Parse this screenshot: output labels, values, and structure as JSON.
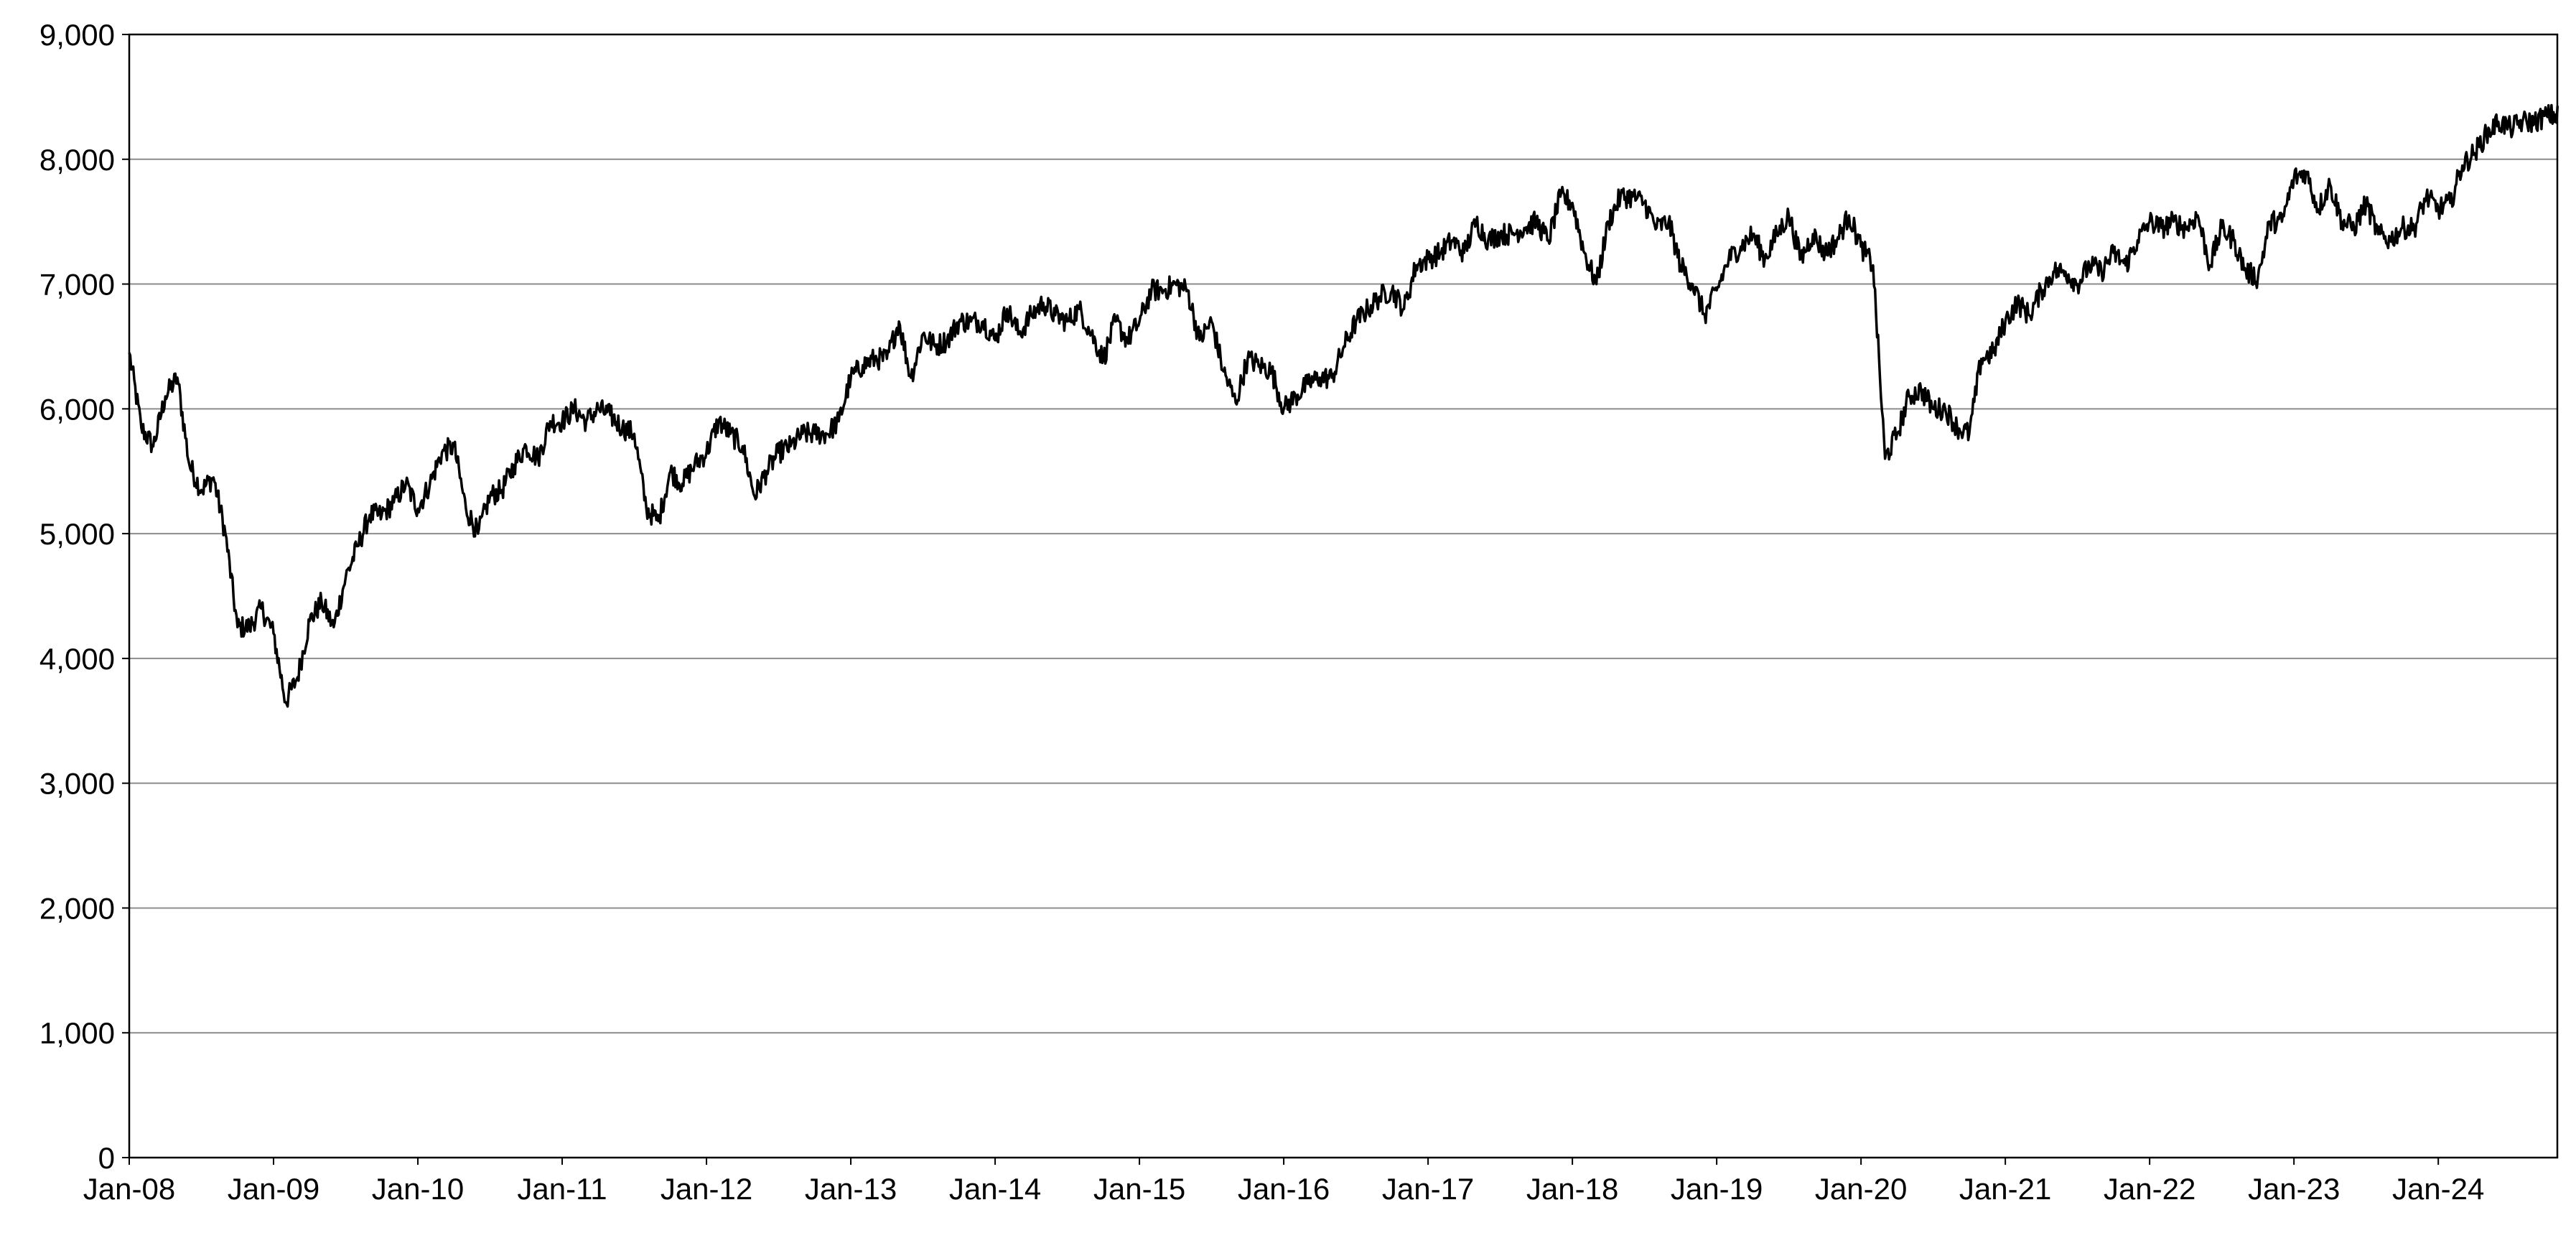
{
  "chart_data": {
    "type": "line",
    "title": "",
    "xlabel": "",
    "ylabel": "",
    "x_range": [
      "2008-01",
      "2024-10"
    ],
    "ylim": [
      0,
      9000
    ],
    "y_ticks": [
      0,
      1000,
      2000,
      3000,
      4000,
      5000,
      6000,
      7000,
      8000,
      9000
    ],
    "y_tick_labels": [
      "0",
      "1,000",
      "2,000",
      "3,000",
      "4,000",
      "5,000",
      "6,000",
      "7,000",
      "8,000",
      "9,000"
    ],
    "x_ticks": [
      "2008-01",
      "2009-01",
      "2010-01",
      "2011-01",
      "2012-01",
      "2013-01",
      "2014-01",
      "2015-01",
      "2016-01",
      "2017-01",
      "2018-01",
      "2019-01",
      "2020-01",
      "2021-01",
      "2022-01",
      "2023-01",
      "2024-01"
    ],
    "x_tick_labels": [
      "Jan-08",
      "Jan-09",
      "Jan-10",
      "Jan-11",
      "Jan-12",
      "Jan-13",
      "Jan-14",
      "Jan-15",
      "Jan-16",
      "Jan-17",
      "Jan-18",
      "Jan-19",
      "Jan-20",
      "Jan-21",
      "Jan-22",
      "Jan-23",
      "Jan-24"
    ],
    "grid": {
      "horizontal": true,
      "vertical": false
    },
    "legend": "none",
    "line_color": "#000000",
    "grid_color": "#8c8c8c",
    "series": [
      {
        "x": [
          "2008-01",
          "2008-02",
          "2008-03",
          "2008-04",
          "2008-05",
          "2008-06",
          "2008-07",
          "2008-08",
          "2008-09",
          "2008-10",
          "2008-11",
          "2008-12",
          "2009-01",
          "2009-02",
          "2009-03",
          "2009-04",
          "2009-05",
          "2009-06",
          "2009-07",
          "2009-08",
          "2009-09",
          "2009-10",
          "2009-11",
          "2009-12",
          "2010-01",
          "2010-02",
          "2010-03",
          "2010-04",
          "2010-05",
          "2010-06",
          "2010-07",
          "2010-08",
          "2010-09",
          "2010-10",
          "2010-11",
          "2010-12",
          "2011-01",
          "2011-02",
          "2011-03",
          "2011-04",
          "2011-05",
          "2011-06",
          "2011-07",
          "2011-08",
          "2011-09",
          "2011-10",
          "2011-11",
          "2011-12",
          "2012-01",
          "2012-02",
          "2012-03",
          "2012-04",
          "2012-05",
          "2012-06",
          "2012-07",
          "2012-08",
          "2012-09",
          "2012-10",
          "2012-11",
          "2012-12",
          "2013-01",
          "2013-02",
          "2013-03",
          "2013-04",
          "2013-05",
          "2013-06",
          "2013-07",
          "2013-08",
          "2013-09",
          "2013-10",
          "2013-11",
          "2013-12",
          "2014-01",
          "2014-02",
          "2014-03",
          "2014-04",
          "2014-05",
          "2014-06",
          "2014-07",
          "2014-08",
          "2014-09",
          "2014-10",
          "2014-11",
          "2014-12",
          "2015-01",
          "2015-02",
          "2015-03",
          "2015-04",
          "2015-05",
          "2015-06",
          "2015-07",
          "2015-08",
          "2015-09",
          "2015-10",
          "2015-11",
          "2015-12",
          "2016-01",
          "2016-02",
          "2016-03",
          "2016-04",
          "2016-05",
          "2016-06",
          "2016-07",
          "2016-08",
          "2016-09",
          "2016-10",
          "2016-11",
          "2016-12",
          "2017-01",
          "2017-02",
          "2017-03",
          "2017-04",
          "2017-05",
          "2017-06",
          "2017-07",
          "2017-08",
          "2017-09",
          "2017-10",
          "2017-11",
          "2017-12",
          "2018-01",
          "2018-02",
          "2018-03",
          "2018-04",
          "2018-05",
          "2018-06",
          "2018-07",
          "2018-08",
          "2018-09",
          "2018-10",
          "2018-11",
          "2018-12",
          "2019-01",
          "2019-02",
          "2019-03",
          "2019-04",
          "2019-05",
          "2019-06",
          "2019-07",
          "2019-08",
          "2019-09",
          "2019-10",
          "2019-11",
          "2019-12",
          "2020-01",
          "2020-02",
          "2020-03",
          "2020-04",
          "2020-05",
          "2020-06",
          "2020-07",
          "2020-08",
          "2020-09",
          "2020-10",
          "2020-11",
          "2020-12",
          "2021-01",
          "2021-02",
          "2021-03",
          "2021-04",
          "2021-05",
          "2021-06",
          "2021-07",
          "2021-08",
          "2021-09",
          "2021-10",
          "2021-11",
          "2021-12",
          "2022-01",
          "2022-02",
          "2022-03",
          "2022-04",
          "2022-05",
          "2022-06",
          "2022-07",
          "2022-08",
          "2022-09",
          "2022-10",
          "2022-11",
          "2022-12",
          "2023-01",
          "2023-02",
          "2023-03",
          "2023-04",
          "2023-05",
          "2023-06",
          "2023-07",
          "2023-08",
          "2023-09",
          "2023-10",
          "2023-11",
          "2023-12",
          "2024-01",
          "2024-02",
          "2024-03",
          "2024-04",
          "2024-05",
          "2024-06",
          "2024-07",
          "2024-08",
          "2024-09",
          "2024-10"
        ],
        "values": [
          6450,
          5850,
          5700,
          6100,
          6250,
          5550,
          5350,
          5450,
          5000,
          4250,
          4250,
          4400,
          4200,
          3650,
          3850,
          4300,
          4450,
          4250,
          4650,
          4900,
          5150,
          5150,
          5250,
          5400,
          5200,
          5400,
          5650,
          5700,
          5200,
          5000,
          5300,
          5350,
          5550,
          5700,
          5600,
          5900,
          5900,
          6000,
          5900,
          6000,
          5950,
          5850,
          5800,
          5200,
          5100,
          5500,
          5400,
          5550,
          5650,
          5900,
          5800,
          5700,
          5300,
          5500,
          5650,
          5700,
          5800,
          5800,
          5800,
          5900,
          6250,
          6350,
          6400,
          6400,
          6700,
          6250,
          6600,
          6500,
          6550,
          6700,
          6700,
          6700,
          6550,
          6800,
          6600,
          6750,
          6850,
          6750,
          6700,
          6800,
          6600,
          6400,
          6700,
          6550,
          6700,
          6950,
          6950,
          7000,
          6950,
          6550,
          6700,
          6300,
          6050,
          6400,
          6350,
          6300,
          6000,
          6100,
          6200,
          6250,
          6250,
          6500,
          6700,
          6800,
          6900,
          6950,
          6800,
          7150,
          7200,
          7250,
          7350,
          7250,
          7500,
          7350,
          7400,
          7400,
          7450,
          7500,
          7350,
          7700,
          7650,
          7250,
          7000,
          7500,
          7700,
          7700,
          7650,
          7450,
          7500,
          7150,
          7000,
          6750,
          6950,
          7200,
          7300,
          7400,
          7200,
          7400,
          7550,
          7200,
          7400,
          7250,
          7350,
          7550,
          7300,
          7150,
          5600,
          5800,
          6100,
          6150,
          6000,
          6000,
          5850,
          5800,
          6400,
          6450,
          6700,
          6850,
          6750,
          6950,
          7100,
          7100,
          7000,
          7150,
          7100,
          7250,
          7150,
          7350,
          7500,
          7450,
          7500,
          7450,
          7550,
          7150,
          7450,
          7350,
          7100,
          7050,
          7500,
          7500,
          7850,
          7900,
          7600,
          7800,
          7500,
          7450,
          7650,
          7400,
          7350,
          7450,
          7450,
          7700,
          7600,
          7650,
          7950,
          8050,
          8200,
          8300,
          8250,
          8300,
          8300,
          8350
        ]
      }
    ]
  }
}
